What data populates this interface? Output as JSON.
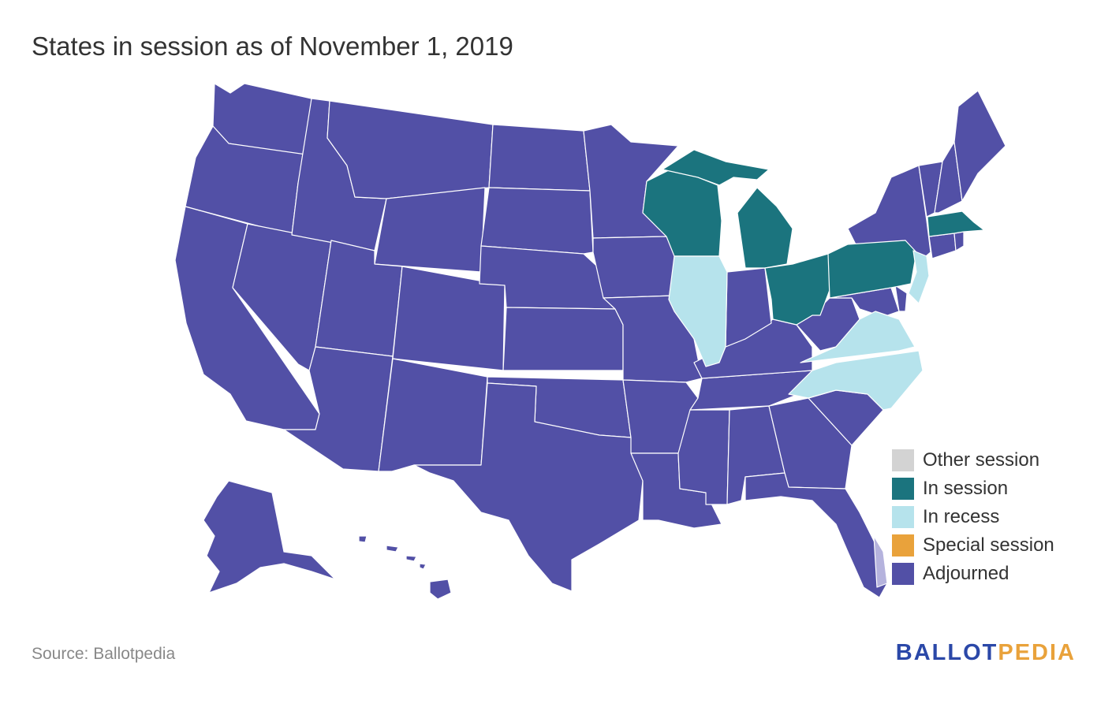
{
  "title": "States in session as of November 1, 2019",
  "colors": {
    "other_session": "#d3d3d3",
    "in_session": "#1b747e",
    "in_recess": "#b6e3ec",
    "special_session": "#e9a23b",
    "adjourned": "#5250a6",
    "dc": "#b5b3dd"
  },
  "legend": [
    {
      "label": "Other session",
      "color": "#d3d3d3"
    },
    {
      "label": "In session",
      "color": "#1b747e"
    },
    {
      "label": "In recess",
      "color": "#b6e3ec"
    },
    {
      "label": "Special session",
      "color": "#e9a23b"
    },
    {
      "label": "Adjourned",
      "color": "#5250a6"
    }
  ],
  "states": {
    "in_session": [
      "Wisconsin",
      "Michigan",
      "Ohio",
      "Pennsylvania",
      "Massachusetts"
    ],
    "in_recess": [
      "Illinois",
      "New Jersey",
      "Virginia",
      "North Carolina"
    ],
    "adjourned": "all other states"
  },
  "footer": {
    "source": "Source: Ballotpedia",
    "brand_a": "BALLOT",
    "brand_b": "PEDIA"
  }
}
